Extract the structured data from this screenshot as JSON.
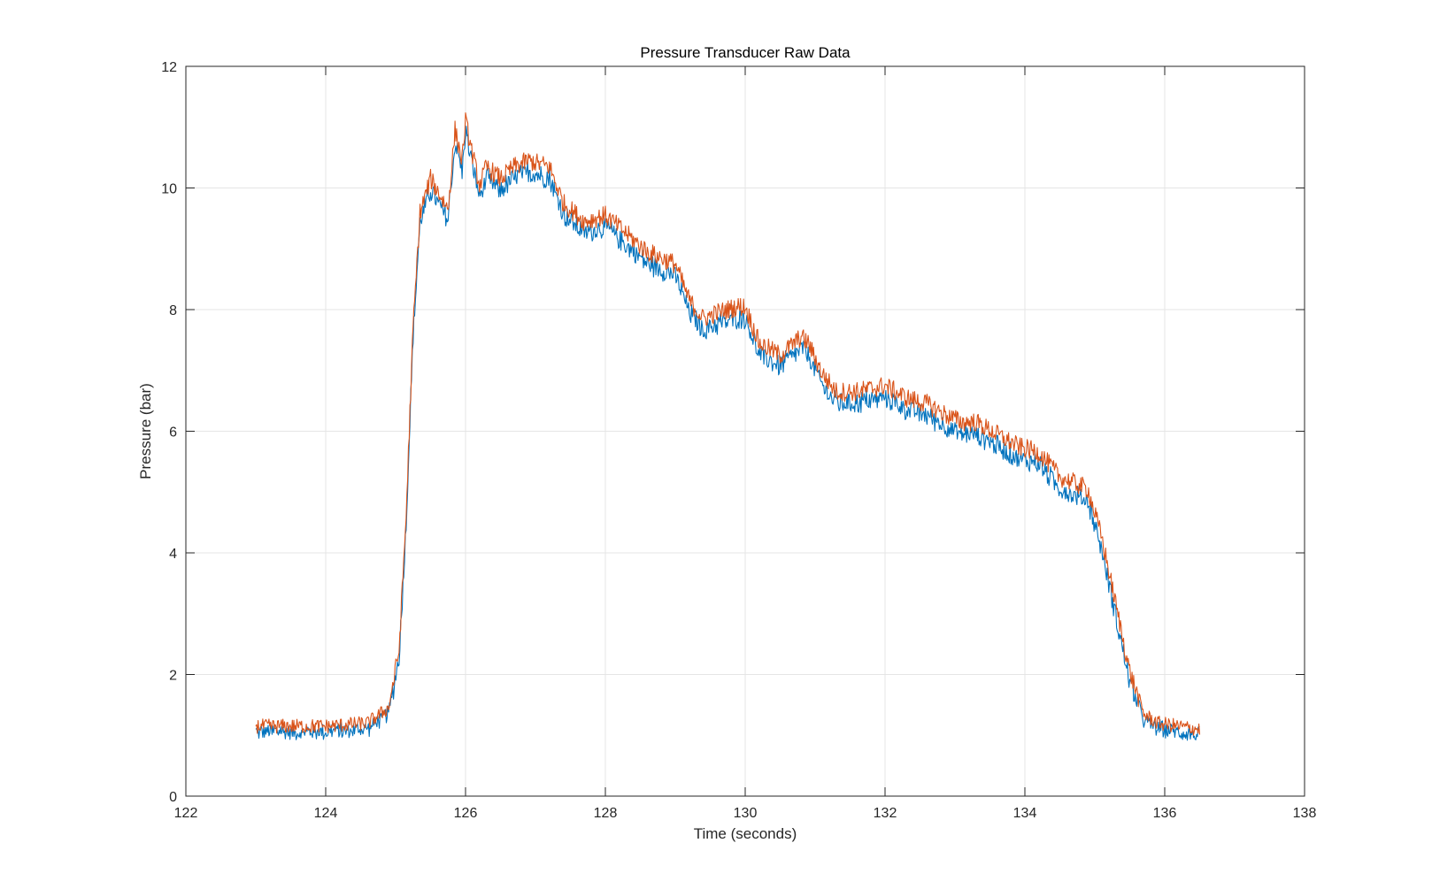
{
  "chart_data": {
    "type": "line",
    "title": "Pressure Transducer Raw Data",
    "xlabel": "Time (seconds)",
    "ylabel": "Pressure (bar)",
    "xlim": [
      122,
      138
    ],
    "ylim": [
      0,
      12
    ],
    "xticks": [
      122,
      124,
      126,
      128,
      130,
      132,
      134,
      136,
      138
    ],
    "yticks": [
      0,
      2,
      4,
      6,
      8,
      10,
      12
    ],
    "grid": true,
    "legend": "none",
    "series": [
      {
        "color": "#0072BD",
        "x": [
          123.0,
          124.0,
          124.6,
          124.9,
          125.05,
          125.15,
          125.25,
          125.35,
          125.5,
          125.6,
          125.75,
          125.85,
          125.95,
          126.0,
          126.1,
          126.2,
          126.3,
          126.5,
          126.7,
          126.9,
          127.2,
          127.4,
          127.7,
          128.0,
          128.3,
          128.6,
          129.0,
          129.2,
          129.4,
          129.6,
          129.9,
          130.0,
          130.2,
          130.5,
          130.8,
          130.9,
          131.1,
          131.3,
          131.6,
          132.0,
          132.3,
          132.6,
          132.9,
          133.1,
          133.3,
          133.6,
          133.9,
          134.2,
          134.5,
          134.9,
          135.1,
          135.3,
          135.5,
          135.7,
          135.9,
          136.2,
          136.5
        ],
        "y": [
          1.1,
          1.1,
          1.15,
          1.4,
          2.3,
          4.5,
          7.6,
          9.5,
          10.0,
          9.8,
          9.5,
          10.8,
          10.3,
          11.0,
          10.4,
          9.9,
          10.2,
          10.0,
          10.2,
          10.3,
          10.2,
          9.6,
          9.3,
          9.4,
          9.1,
          8.8,
          8.6,
          8.0,
          7.7,
          7.8,
          7.9,
          7.9,
          7.3,
          7.1,
          7.4,
          7.3,
          6.8,
          6.5,
          6.5,
          6.6,
          6.4,
          6.3,
          6.1,
          6.0,
          6.0,
          5.8,
          5.6,
          5.5,
          5.1,
          4.9,
          4.1,
          3.0,
          1.9,
          1.3,
          1.15,
          1.1,
          1.05
        ]
      },
      {
        "color": "#D95319",
        "x": [
          123.0,
          124.0,
          124.6,
          124.9,
          125.05,
          125.15,
          125.25,
          125.35,
          125.5,
          125.6,
          125.75,
          125.85,
          125.95,
          126.0,
          126.1,
          126.2,
          126.3,
          126.5,
          126.7,
          126.9,
          127.2,
          127.4,
          127.7,
          128.0,
          128.3,
          128.6,
          129.0,
          129.2,
          129.4,
          129.6,
          129.9,
          130.0,
          130.2,
          130.5,
          130.8,
          130.9,
          131.1,
          131.3,
          131.6,
          132.0,
          132.3,
          132.6,
          132.9,
          133.1,
          133.3,
          133.6,
          133.9,
          134.2,
          134.5,
          134.9,
          135.1,
          135.3,
          135.5,
          135.7,
          135.9,
          136.2,
          136.5
        ],
        "y": [
          1.15,
          1.15,
          1.2,
          1.45,
          2.4,
          4.6,
          7.7,
          9.6,
          10.15,
          9.95,
          9.65,
          10.95,
          10.45,
          11.1,
          10.55,
          10.05,
          10.35,
          10.15,
          10.35,
          10.45,
          10.35,
          9.75,
          9.45,
          9.55,
          9.25,
          8.95,
          8.75,
          8.15,
          7.85,
          7.95,
          8.05,
          8.05,
          7.45,
          7.25,
          7.55,
          7.45,
          6.95,
          6.65,
          6.65,
          6.75,
          6.55,
          6.45,
          6.25,
          6.15,
          6.15,
          5.95,
          5.75,
          5.65,
          5.25,
          5.05,
          4.25,
          3.15,
          2.05,
          1.35,
          1.2,
          1.15,
          1.1
        ]
      }
    ]
  }
}
